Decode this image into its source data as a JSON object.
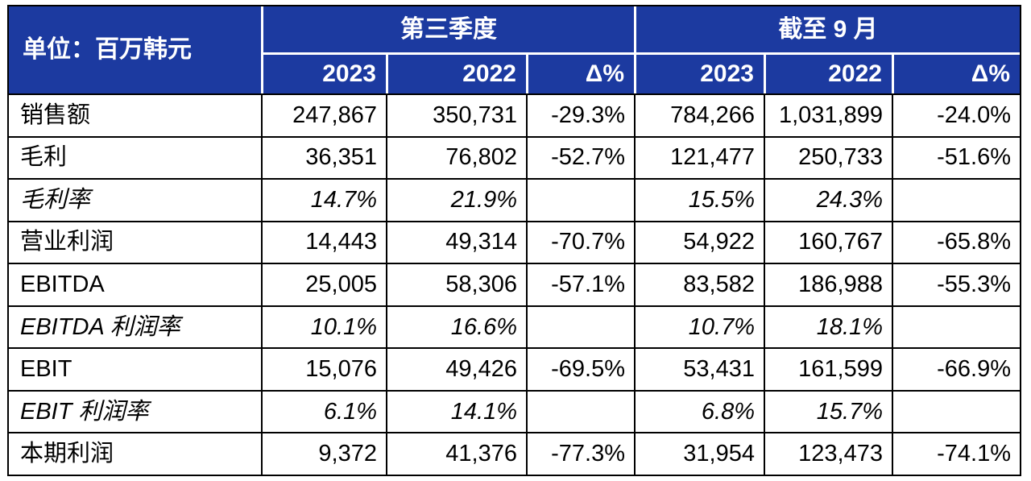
{
  "colors": {
    "header_bg": "#1c3aa0",
    "header_text": "#ffffff",
    "body_text": "#000000",
    "border": "#000000"
  },
  "chart_data": {
    "type": "table",
    "unit_label": "单位：百万韩元",
    "groups": [
      {
        "label": "第三季度",
        "columns": [
          "2023",
          "2022",
          "Δ%"
        ]
      },
      {
        "label": "截至 9 月",
        "columns": [
          "2023",
          "2022",
          "Δ%"
        ]
      }
    ],
    "rows": [
      {
        "label": "销售额",
        "italic": false,
        "cells": [
          "247,867",
          "350,731",
          "-29.3%",
          "784,266",
          "1,031,899",
          "-24.0%"
        ]
      },
      {
        "label": "毛利",
        "italic": false,
        "cells": [
          "36,351",
          "76,802",
          "-52.7%",
          "121,477",
          "250,733",
          "-51.6%"
        ]
      },
      {
        "label": "毛利率",
        "italic": true,
        "cells": [
          "14.7%",
          "21.9%",
          "",
          "15.5%",
          "24.3%",
          ""
        ]
      },
      {
        "label": "营业利润",
        "italic": false,
        "cells": [
          "14,443",
          "49,314",
          "-70.7%",
          "54,922",
          "160,767",
          "-65.8%"
        ]
      },
      {
        "label": "EBITDA",
        "italic": false,
        "cells": [
          "25,005",
          "58,306",
          "-57.1%",
          "83,582",
          "186,988",
          "-55.3%"
        ]
      },
      {
        "label": "EBITDA 利润率",
        "italic": true,
        "cells": [
          "10.1%",
          "16.6%",
          "",
          "10.7%",
          "18.1%",
          ""
        ]
      },
      {
        "label": "EBIT",
        "italic": false,
        "cells": [
          "15,076",
          "49,426",
          "-69.5%",
          "53,431",
          "161,599",
          "-66.9%"
        ]
      },
      {
        "label": "EBIT 利润率",
        "italic": true,
        "cells": [
          "6.1%",
          "14.1%",
          "",
          "6.8%",
          "15.7%",
          ""
        ]
      },
      {
        "label": "本期利润",
        "italic": false,
        "cells": [
          "9,372",
          "41,376",
          "-77.3%",
          "31,954",
          "123,473",
          "-74.1%"
        ]
      }
    ]
  }
}
